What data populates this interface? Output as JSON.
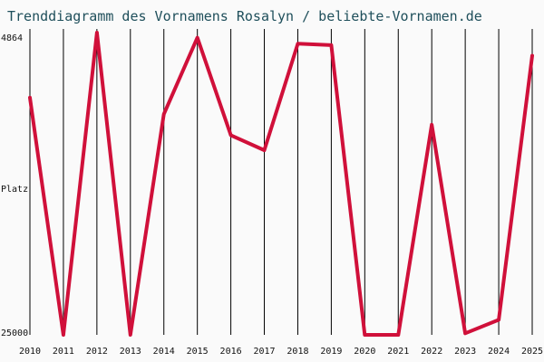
{
  "chart_data": {
    "type": "line",
    "title": "Trenddiagramm des Vornamens Rosalyn / beliebte-Vornamen.de",
    "ylabel": "Platz",
    "y_tick_labels": [
      "4864",
      "25000"
    ],
    "y_inverted": true,
    "ylim": [
      4864,
      25000
    ],
    "grid": "vertical",
    "x": [
      "2010",
      "2011",
      "2012",
      "2013",
      "2014",
      "2015",
      "2016",
      "2017",
      "2018",
      "2019",
      "2020",
      "2021",
      "2022",
      "2023",
      "2024",
      "2025"
    ],
    "series": [
      {
        "values": [
          9200,
          25000,
          4864,
          25000,
          10300,
          5200,
          11700,
          12700,
          5600,
          5700,
          25000,
          25000,
          11000,
          24900,
          24000,
          6400
        ]
      }
    ],
    "colors": {
      "line": "#d0103a",
      "title": "#1f4f5b",
      "grid": "#000000",
      "background": "#fafafa"
    }
  }
}
